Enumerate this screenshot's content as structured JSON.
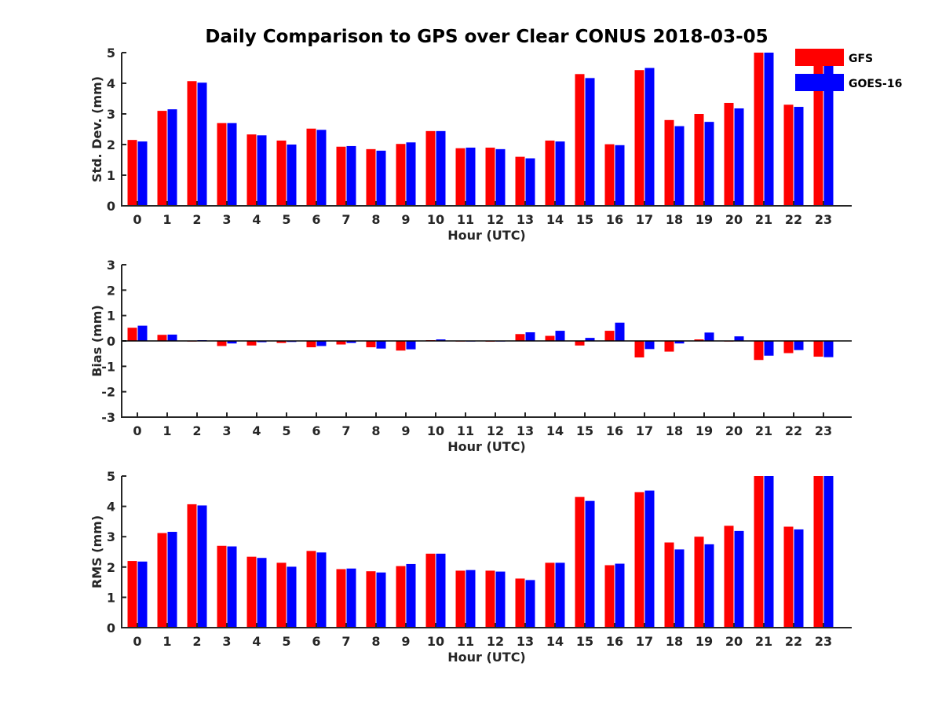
{
  "title": "Daily Comparison to GPS over Clear CONUS 2018-03-05",
  "legend": [
    {
      "name": "GFS",
      "color": "#ff0000"
    },
    {
      "name": "GOES-16",
      "color": "#0000ff"
    }
  ],
  "chart_data": [
    {
      "type": "bar",
      "id": "stddev",
      "ylabel": "Std. Dev. (mm)",
      "xlabel": "Hour (UTC)",
      "ylim": [
        0,
        5
      ],
      "yticks": [
        0,
        1,
        2,
        3,
        4,
        5
      ],
      "categories": [
        "0",
        "1",
        "2",
        "3",
        "4",
        "5",
        "6",
        "7",
        "8",
        "9",
        "10",
        "11",
        "12",
        "13",
        "14",
        "15",
        "16",
        "17",
        "18",
        "19",
        "20",
        "21",
        "22",
        "23"
      ],
      "series": [
        {
          "name": "GFS",
          "values": [
            2.15,
            3.1,
            4.07,
            2.7,
            2.33,
            2.13,
            2.52,
            1.93,
            1.85,
            2.02,
            2.44,
            1.88,
            1.9,
            1.6,
            2.13,
            4.3,
            2.01,
            4.43,
            2.8,
            3.0,
            3.36,
            5.0,
            3.3,
            5.0
          ]
        },
        {
          "name": "GOES-16",
          "values": [
            2.1,
            3.15,
            4.02,
            2.7,
            2.3,
            2.0,
            2.48,
            1.95,
            1.8,
            2.07,
            2.44,
            1.9,
            1.85,
            1.55,
            2.1,
            4.17,
            1.98,
            4.5,
            2.6,
            2.74,
            3.18,
            5.0,
            3.23,
            5.0
          ]
        }
      ]
    },
    {
      "type": "bar",
      "id": "bias",
      "ylabel": "Bias (mm)",
      "xlabel": "Hour (UTC)",
      "ylim": [
        -3,
        3
      ],
      "yticks": [
        -3,
        -2,
        -1,
        0,
        1,
        2,
        3
      ],
      "categories": [
        "0",
        "1",
        "2",
        "3",
        "4",
        "5",
        "6",
        "7",
        "8",
        "9",
        "10",
        "11",
        "12",
        "13",
        "14",
        "15",
        "16",
        "17",
        "18",
        "19",
        "20",
        "21",
        "22",
        "23"
      ],
      "series": [
        {
          "name": "GFS",
          "values": [
            0.52,
            0.24,
            0.0,
            -0.2,
            -0.18,
            -0.08,
            -0.25,
            -0.14,
            -0.25,
            -0.38,
            0.03,
            0.0,
            -0.03,
            0.27,
            0.2,
            -0.18,
            0.4,
            -0.65,
            -0.42,
            0.06,
            0.0,
            -0.75,
            -0.48,
            -0.62
          ]
        },
        {
          "name": "GOES-16",
          "values": [
            0.6,
            0.25,
            0.03,
            -0.1,
            -0.05,
            -0.04,
            -0.2,
            -0.08,
            -0.3,
            -0.33,
            0.06,
            0.0,
            0.0,
            0.34,
            0.4,
            0.12,
            0.72,
            -0.32,
            -0.1,
            0.33,
            0.18,
            -0.58,
            -0.36,
            -0.64
          ]
        }
      ]
    },
    {
      "type": "bar",
      "id": "rms",
      "ylabel": "RMS (mm)",
      "xlabel": "Hour (UTC)",
      "ylim": [
        0,
        5
      ],
      "yticks": [
        0,
        1,
        2,
        3,
        4,
        5
      ],
      "categories": [
        "0",
        "1",
        "2",
        "3",
        "4",
        "5",
        "6",
        "7",
        "8",
        "9",
        "10",
        "11",
        "12",
        "13",
        "14",
        "15",
        "16",
        "17",
        "18",
        "19",
        "20",
        "21",
        "22",
        "23"
      ],
      "series": [
        {
          "name": "GFS",
          "values": [
            2.2,
            3.12,
            4.07,
            2.7,
            2.34,
            2.14,
            2.53,
            1.93,
            1.86,
            2.03,
            2.44,
            1.88,
            1.88,
            1.62,
            2.14,
            4.31,
            2.06,
            4.47,
            2.81,
            3.0,
            3.36,
            5.0,
            3.33,
            5.0
          ]
        },
        {
          "name": "GOES-16",
          "values": [
            2.18,
            3.16,
            4.03,
            2.68,
            2.3,
            2.01,
            2.48,
            1.95,
            1.82,
            2.1,
            2.44,
            1.9,
            1.85,
            1.57,
            2.14,
            4.18,
            2.11,
            4.52,
            2.58,
            2.75,
            3.19,
            5.0,
            3.24,
            5.0
          ]
        }
      ]
    }
  ]
}
